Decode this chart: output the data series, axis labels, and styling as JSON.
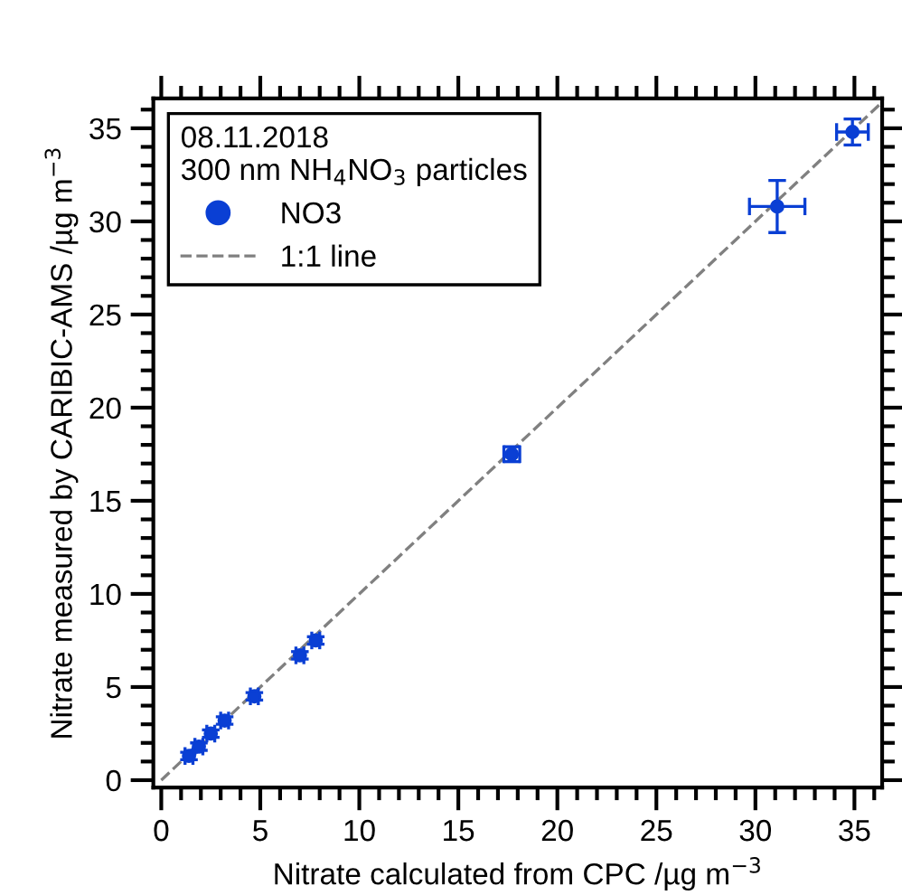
{
  "chart_data": {
    "type": "scatter",
    "xlabel": "Nitrate calculated from CPC /µg m$^{−3}$",
    "ylabel": "Nitrate measured by CARIBIC-AMS /µg m$^{−3}$",
    "legend_title": "08.11.2018\n300 nm NH$_{4}$NO$_{3}$ particles",
    "series": [
      {
        "name": "NO3",
        "color": "#0a3fd4",
        "marker": "circle",
        "x": [
          1.4,
          1.9,
          2.5,
          3.2,
          4.7,
          7.0,
          7.8,
          17.7,
          31.1,
          34.9
        ],
        "values": [
          1.3,
          1.8,
          2.5,
          3.2,
          4.5,
          6.7,
          7.5,
          17.5,
          30.8,
          34.8
        ],
        "errors": [
          0.2,
          0.2,
          0.2,
          0.2,
          0.2,
          0.2,
          0.2,
          0.4,
          1.4,
          0.7
        ],
        "xerrors": [
          0.2,
          0.2,
          0.2,
          0.2,
          0.2,
          0.2,
          0.2,
          0.4,
          1.4,
          0.8
        ]
      },
      {
        "name": "1:1 line",
        "type": "line",
        "color": "#808080",
        "line_style": "dashed",
        "marker": "none",
        "x": [
          0,
          36.3
        ],
        "values": [
          0,
          36.3
        ]
      }
    ],
    "xlim": [
      -0.4,
      36.4
    ],
    "ylim": [
      -0.4,
      36.6
    ],
    "xticks": [
      0,
      5,
      10,
      15,
      20,
      25,
      30,
      35
    ],
    "yticks": [
      0,
      5,
      10,
      15,
      20,
      25,
      30,
      35
    ],
    "grid": false,
    "legend": "top left"
  }
}
